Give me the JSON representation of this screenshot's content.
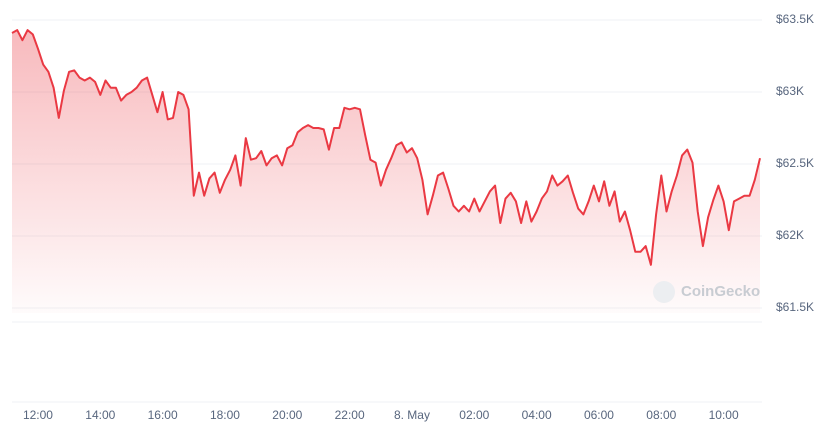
{
  "chart_data": {
    "type": "line",
    "categories": [
      null,
      null,
      null,
      null,
      null,
      "12:00",
      null,
      null,
      null,
      null,
      null,
      null,
      null,
      null,
      null,
      null,
      null,
      "14:00",
      null,
      null,
      null,
      null,
      null,
      null,
      null,
      null,
      null,
      null,
      null,
      "16:00",
      null,
      null,
      null,
      null,
      null,
      null,
      null,
      null,
      null,
      null,
      null,
      "18:00",
      null,
      null,
      null,
      null,
      null,
      null,
      null,
      null,
      null,
      null,
      null,
      "20:00",
      null,
      null,
      null,
      null,
      null,
      null,
      null,
      null,
      null,
      null,
      null,
      "22:00",
      null,
      null,
      null,
      null,
      null,
      null,
      null,
      null,
      null,
      null,
      null,
      "8. May",
      null,
      null,
      null,
      null,
      null,
      null,
      null,
      null,
      null,
      null,
      null,
      "02:00",
      null,
      null,
      null,
      null,
      null,
      null,
      null,
      null,
      null,
      null,
      null,
      "04:00",
      null,
      null,
      null,
      null,
      null,
      null,
      null,
      null,
      null,
      null,
      null,
      "06:00",
      null,
      null,
      null,
      null,
      null,
      null,
      null,
      null,
      null,
      null,
      null,
      "08:00",
      null,
      null,
      null,
      null,
      null,
      null,
      null,
      null,
      null,
      null,
      null,
      "10:00",
      null,
      null,
      null,
      null,
      null,
      null,
      null
    ],
    "values": [
      63410,
      63430,
      63360,
      63430,
      63400,
      63300,
      63190,
      63140,
      63030,
      62820,
      63010,
      63140,
      63150,
      63100,
      63080,
      63100,
      63070,
      62980,
      63080,
      63030,
      63030,
      62940,
      62980,
      63000,
      63030,
      63080,
      63100,
      62980,
      62860,
      63000,
      62810,
      62820,
      63000,
      62980,
      62880,
      62280,
      62440,
      62280,
      62400,
      62440,
      62300,
      62390,
      62460,
      62560,
      62350,
      62680,
      62530,
      62540,
      62590,
      62490,
      62540,
      62560,
      62490,
      62610,
      62630,
      62720,
      62750,
      62770,
      62750,
      62750,
      62740,
      62600,
      62750,
      62750,
      62890,
      62880,
      62890,
      62880,
      62700,
      62530,
      62510,
      62350,
      62460,
      62540,
      62630,
      62650,
      62580,
      62610,
      62540,
      62390,
      62150,
      62280,
      62420,
      62440,
      62330,
      62210,
      62170,
      62210,
      62170,
      62260,
      62170,
      62240,
      62310,
      62350,
      62090,
      62260,
      62300,
      62240,
      62090,
      62240,
      62100,
      62170,
      62260,
      62310,
      62420,
      62350,
      62380,
      62420,
      62300,
      62190,
      62150,
      62240,
      62350,
      62240,
      62380,
      62210,
      62310,
      62100,
      62170,
      62040,
      61890,
      61890,
      61930,
      61800,
      62150,
      62420,
      62170,
      62310,
      62420,
      62560,
      62600,
      62510,
      62170,
      61930,
      62130,
      62250,
      62350,
      62240,
      62040,
      62240,
      62260,
      62280,
      62280,
      62390,
      62540
    ],
    "color": "#ea3943",
    "ylim": [
      61500,
      63500
    ],
    "yticks": [
      {
        "value": 61500,
        "label": "$61.5K"
      },
      {
        "value": 62000,
        "label": "$62K"
      },
      {
        "value": 62500,
        "label": "$62.5K"
      },
      {
        "value": 63000,
        "label": "$63K"
      },
      {
        "value": 63500,
        "label": "$63.5K"
      }
    ],
    "grid": true,
    "watermark": "CoinGecko"
  }
}
